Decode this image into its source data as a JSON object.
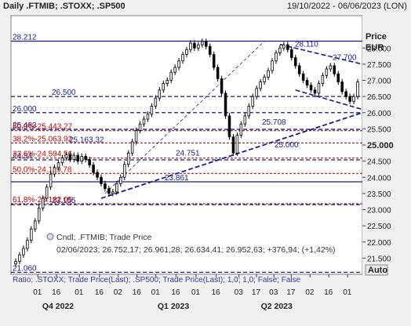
{
  "header": {
    "title": "Daily .FTMIB; .STOXX; .SP500",
    "date_range": "19/10/2022 - 06/06/2023 (LON)"
  },
  "axis": {
    "price_label": "Price",
    "currency": "EUR",
    "auto_label": "Auto",
    "current_price": "25.000"
  },
  "legend_box": {
    "line1": "Cndl; .FTMIB; Trade Price",
    "line2": "02/06/2023; 26.752,17; 26.961,28; 26.634,41; 26.952,63; +376,94; (+1,42%)"
  },
  "bottom_note": "Ratio; .STOXX; Trade Price(Last); .SP500; Trade Price(Last); 1,0; 1,0; False; False",
  "colors": {
    "price_line": "#000000",
    "level_line": "#1a1a8c",
    "fib_line": "#8b0000",
    "fib_text": "#cc0000",
    "level_text": "#1a1a8c"
  },
  "chart_data": {
    "type": "candlestick",
    "title": "Daily .FTMIB; .STOXX; .SP500",
    "ylim": [
      21000,
      29000
    ],
    "x_tick_labels": [
      "01",
      "16",
      "01",
      "16",
      "02",
      "16",
      "01",
      "16",
      "01",
      "16",
      "03",
      "17",
      "03",
      "17",
      "02",
      "16",
      "01"
    ],
    "x_period_labels": [
      "Q4 2022",
      "Q1 2023",
      "Q2 2023"
    ],
    "y_tick_labels": [
      "28.000",
      "27.500",
      "27.000",
      "26.500",
      "26.000",
      "25.500",
      "25.000",
      "24.500",
      "24.000",
      "23.500",
      "23.000",
      "22.500",
      "22.000",
      "21.500"
    ],
    "horizontal_levels": [
      {
        "label": "28.212",
        "value": 28212,
        "side": "left"
      },
      {
        "label": "26.500",
        "value": 26500,
        "side": "left-mid"
      },
      {
        "label": "26.000",
        "value": 26000,
        "side": "left"
      },
      {
        "label": "25.483",
        "value": 25483,
        "side": "left"
      },
      {
        "label": "24.54",
        "value": 24540,
        "side": "left"
      },
      {
        "label": "23.861",
        "value": 23861,
        "side": "mid"
      },
      {
        "label": "23.155",
        "value": 23155,
        "side": "left-mid"
      },
      {
        "label": "21.060",
        "value": 21060,
        "side": "left"
      }
    ],
    "fibonacci": [
      {
        "label": "50,0%-25.443,27",
        "value": 25443
      },
      {
        "label": "38,2%-25.063,92",
        "value": 25064
      },
      {
        "label": "23,6%-24.594,56",
        "value": 24595
      },
      {
        "label": "50,0%-24.119,78",
        "value": 24120
      },
      {
        "label": "61,8%-23.182,05",
        "value": 23182
      }
    ],
    "annotations": [
      {
        "label": "28.110",
        "value": 28110
      },
      {
        "label": "27.700",
        "value": 27700
      },
      {
        "label": "25.708",
        "value": 25708
      },
      {
        "label": "25.000",
        "value": 25000
      },
      {
        "label": "24.751",
        "value": 24751
      },
      {
        "label": "25.163,32",
        "value": 25163
      }
    ],
    "series": [
      {
        "values": [
          21400,
          21600,
          21800,
          22050,
          22400,
          22650,
          23050,
          23350,
          23700,
          24100,
          24300,
          24450,
          24600,
          24700,
          24550,
          24680,
          24500,
          24650,
          24550,
          24380,
          24150,
          24000,
          23800,
          23650,
          23500,
          23550,
          23800,
          24000,
          24400,
          24750,
          25100,
          25450,
          25650,
          25800,
          25950,
          26200,
          26450,
          26700,
          26900,
          27000,
          27250,
          27400,
          27600,
          27800,
          27950,
          28150,
          28000,
          28100,
          28200,
          28050,
          27800,
          27400,
          27050,
          26600,
          25900,
          25250,
          24750,
          25300,
          25650,
          25900,
          26200,
          26500,
          26750,
          26950,
          27100,
          27300,
          27600,
          27850,
          28000,
          28100,
          27950,
          27700,
          27450,
          27200,
          27000,
          26850,
          26700,
          26600,
          26900,
          27150,
          27350,
          27450,
          27200,
          26950,
          26650,
          26500,
          26350,
          26500,
          26950
        ]
      }
    ]
  }
}
